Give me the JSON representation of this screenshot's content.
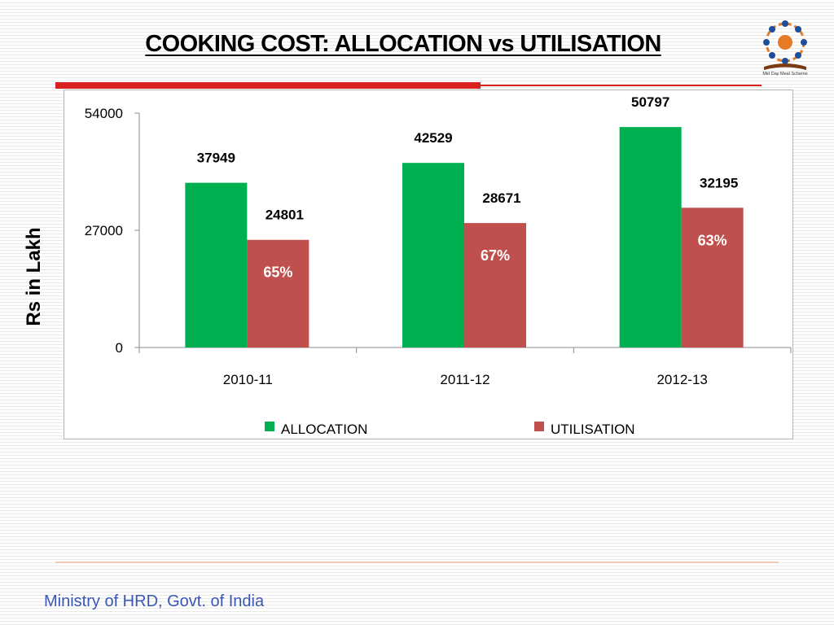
{
  "slide": {
    "title": "COOKING COST: ALLOCATION vs UTILISATION",
    "footer": "Ministry of HRD, Govt. of India",
    "logo": {
      "icon": "mid-day-meal-logo",
      "caption": "Mid Day Meal Scheme"
    }
  },
  "colors": {
    "allocation": "#00b050",
    "utilisation": "#c0504d",
    "title_rule": "#d9211f",
    "footer_text": "#3b57b5"
  },
  "chart_data": {
    "type": "bar",
    "title": "",
    "xlabel": "",
    "ylabel": "Rs in Lakh",
    "categories": [
      "2010-11",
      "2011-12",
      "2012-13"
    ],
    "ylim": [
      0,
      54000
    ],
    "yticks": [
      0,
      27000,
      54000
    ],
    "series": [
      {
        "name": "ALLOCATION",
        "color": "#00b050",
        "values": [
          37949,
          42529,
          50797
        ]
      },
      {
        "name": "UTILISATION",
        "color": "#c0504d",
        "values": [
          24801,
          28671,
          32195
        ]
      }
    ],
    "annotations": [
      "65%",
      "67%",
      "63%"
    ],
    "legend_position": "bottom",
    "grid": false
  }
}
